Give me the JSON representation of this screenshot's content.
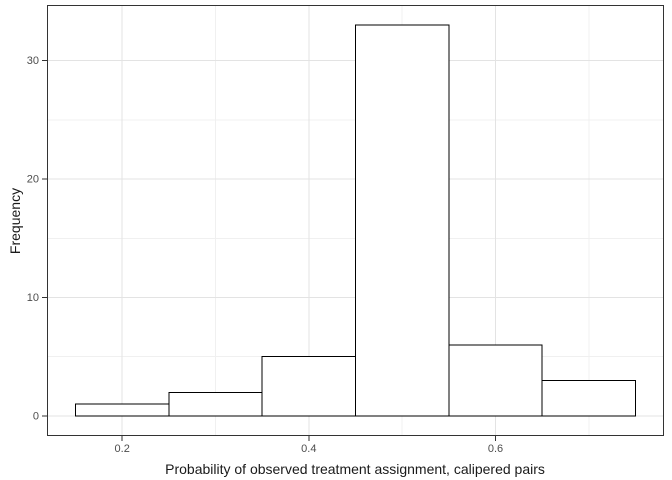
{
  "chart_data": {
    "type": "bar",
    "subtype": "histogram",
    "title": "",
    "xlabel": "Probability of observed treatment assignment, calipered pairs",
    "ylabel": "Frequency",
    "bins": [
      {
        "x0": 0.15,
        "x1": 0.25,
        "count": 1
      },
      {
        "x0": 0.25,
        "x1": 0.35,
        "count": 2
      },
      {
        "x0": 0.35,
        "x1": 0.45,
        "count": 5
      },
      {
        "x0": 0.45,
        "x1": 0.55,
        "count": 33
      },
      {
        "x0": 0.55,
        "x1": 0.65,
        "count": 6
      },
      {
        "x0": 0.65,
        "x1": 0.75,
        "count": 3
      }
    ],
    "x_ticks": [
      {
        "v": 0.2,
        "label": "0.2"
      },
      {
        "v": 0.4,
        "label": "0.4"
      },
      {
        "v": 0.6,
        "label": "0.6"
      }
    ],
    "y_ticks": [
      {
        "v": 0,
        "label": "0"
      },
      {
        "v": 10,
        "label": "10"
      },
      {
        "v": 20,
        "label": "20"
      },
      {
        "v": 30,
        "label": "30"
      }
    ],
    "x_minor": [
      0.3,
      0.5,
      0.7
    ],
    "y_minor": [
      5,
      15,
      25
    ],
    "xlim": [
      0.12,
      0.78
    ],
    "ylim": [
      -1.65,
      34.65
    ],
    "grid": true,
    "legend": "none",
    "colors": {
      "background": "#ffffff",
      "panel_background": "#ffffff",
      "bar_fill": "#ffffff",
      "bar_stroke": "#000000",
      "grid_major": "#e3e3e3",
      "grid_minor": "#f0f0f0",
      "panel_border": "#333333",
      "tick": "#333333",
      "tick_label": "#4d4d4d",
      "axis_title": "#1a1a1a"
    }
  }
}
